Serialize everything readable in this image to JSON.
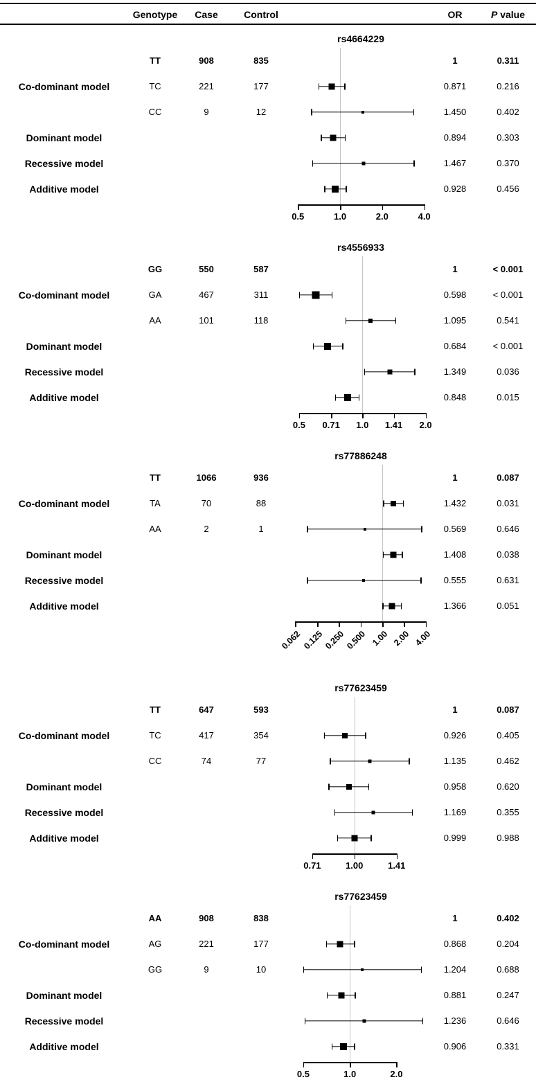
{
  "header": {
    "genotype": "Genotype",
    "case": "Case",
    "control": "Control",
    "or": "OR",
    "p_italic": "P",
    "p_rest": " value"
  },
  "chart_data": [
    {
      "type": "forest",
      "snp": "rs4664229",
      "x_scale": "log",
      "ref_line": 1.0,
      "draw_range": [
        0.45,
        4.4
      ],
      "ticks": [
        0.5,
        1.0,
        2.0,
        4.0
      ],
      "tick_labels": [
        "0.5",
        "1.0",
        "2.0",
        "4.0"
      ],
      "rotated_tick_labels": false,
      "rows": [
        {
          "model": "",
          "genotype": "TT",
          "case": "908",
          "control": "835",
          "or_text": "1",
          "p_text": "0.311",
          "bold": true
        },
        {
          "model": "Co-dominant model",
          "genotype": "TC",
          "case": "221",
          "control": "177",
          "or": 0.871,
          "ci": [
            0.7,
            1.09
          ],
          "marker_size": 9,
          "or_text": "0.871",
          "p_text": "0.216"
        },
        {
          "model": "",
          "genotype": "CC",
          "case": "9",
          "control": "12",
          "or": 1.45,
          "ci": [
            0.62,
            3.4
          ],
          "marker_size": 4,
          "or_text": "1.450",
          "p_text": "0.402"
        },
        {
          "model": "Dominant model",
          "or": 0.894,
          "ci": [
            0.73,
            1.1
          ],
          "marker_size": 9,
          "or_text": "0.894",
          "p_text": "0.303"
        },
        {
          "model": "Recessive model",
          "or": 1.467,
          "ci": [
            0.63,
            3.42
          ],
          "marker_size": 5,
          "or_text": "1.467",
          "p_text": "0.370"
        },
        {
          "model": "Additive model",
          "or": 0.928,
          "ci": [
            0.77,
            1.12
          ],
          "marker_size": 10,
          "or_text": "0.928",
          "p_text": "0.456"
        }
      ]
    },
    {
      "type": "forest",
      "snp": "rs4556933",
      "x_scale": "log",
      "ref_line": 1.0,
      "draw_range": [
        0.46,
        2.1
      ],
      "ticks": [
        0.5,
        0.71,
        1.0,
        1.41,
        2.0
      ],
      "tick_labels": [
        "0.5",
        "0.71",
        "1.0",
        "1.41",
        "2.0"
      ],
      "rotated_tick_labels": false,
      "rows": [
        {
          "model": "",
          "genotype": "GG",
          "case": "550",
          "control": "587",
          "or_text": "1",
          "p_text": "< 0.001",
          "bold": true
        },
        {
          "model": "Co-dominant model",
          "genotype": "GA",
          "case": "467",
          "control": "311",
          "or": 0.598,
          "ci": [
            0.5,
            0.72
          ],
          "marker_size": 11,
          "or_text": "0.598",
          "p_text": "< 0.001"
        },
        {
          "model": "",
          "genotype": "AA",
          "case": "101",
          "control": "118",
          "or": 1.095,
          "ci": [
            0.83,
            1.45
          ],
          "marker_size": 6,
          "or_text": "1.095",
          "p_text": "0.541"
        },
        {
          "model": "Dominant model",
          "or": 0.684,
          "ci": [
            0.58,
            0.81
          ],
          "marker_size": 10,
          "or_text": "0.684",
          "p_text": "< 0.001"
        },
        {
          "model": "Recessive model",
          "or": 1.349,
          "ci": [
            1.02,
            1.79
          ],
          "marker_size": 7,
          "or_text": "1.349",
          "p_text": "0.036"
        },
        {
          "model": "Additive model",
          "or": 0.848,
          "ci": [
            0.74,
            0.97
          ],
          "marker_size": 10,
          "or_text": "0.848",
          "p_text": "0.015"
        }
      ]
    },
    {
      "type": "forest",
      "snp": "rs77886248",
      "x_scale": "log",
      "ref_line": 1.0,
      "draw_range": [
        0.055,
        4.6
      ],
      "ticks": [
        0.062,
        0.125,
        0.25,
        0.5,
        1.0,
        2.0,
        4.0
      ],
      "tick_labels": [
        "0.062",
        "0.125",
        "0.250",
        "0.500",
        "1.00",
        "2.00",
        "4.00"
      ],
      "rotated_tick_labels": true,
      "rows": [
        {
          "model": "",
          "genotype": "TT",
          "case": "1066",
          "control": "936",
          "or_text": "1",
          "p_text": "0.087",
          "bold": true
        },
        {
          "model": "Co-dominant model",
          "genotype": "TA",
          "case": "70",
          "control": "88",
          "or": 1.432,
          "ci": [
            1.03,
            1.99
          ],
          "marker_size": 8,
          "or_text": "1.432",
          "p_text": "0.031"
        },
        {
          "model": "",
          "genotype": "AA",
          "case": "2",
          "control": "1",
          "or": 0.569,
          "ci": [
            0.09,
            3.6
          ],
          "marker_size": 4,
          "or_text": "0.569",
          "p_text": "0.646"
        },
        {
          "model": "Dominant model",
          "or": 1.408,
          "ci": [
            1.02,
            1.94
          ],
          "marker_size": 9,
          "or_text": "1.408",
          "p_text": "0.038"
        },
        {
          "model": "Recessive model",
          "or": 0.555,
          "ci": [
            0.09,
            3.5
          ],
          "marker_size": 4,
          "or_text": "0.555",
          "p_text": "0.631"
        },
        {
          "model": "Additive model",
          "or": 1.366,
          "ci": [
            1.0,
            1.86
          ],
          "marker_size": 9,
          "or_text": "1.366",
          "p_text": "0.051"
        }
      ]
    },
    {
      "type": "forest",
      "snp": "rs77623459",
      "x_scale": "log",
      "ref_line": 1.0,
      "draw_range": [
        0.6,
        1.85
      ],
      "ticks": [
        0.71,
        1.0,
        1.41
      ],
      "tick_labels": [
        "0.71",
        "1.00",
        "1.41"
      ],
      "rotated_tick_labels": false,
      "rows": [
        {
          "model": "",
          "genotype": "TT",
          "case": "647",
          "control": "593",
          "or_text": "1",
          "p_text": "0.087",
          "bold": true
        },
        {
          "model": "Co-dominant model",
          "genotype": "TC",
          "case": "417",
          "control": "354",
          "or": 0.926,
          "ci": [
            0.78,
            1.1
          ],
          "marker_size": 8,
          "or_text": "0.926",
          "p_text": "0.405"
        },
        {
          "model": "",
          "genotype": "CC",
          "case": "74",
          "control": "77",
          "or": 1.135,
          "ci": [
            0.82,
            1.57
          ],
          "marker_size": 5,
          "or_text": "1.135",
          "p_text": "0.462"
        },
        {
          "model": "Dominant model",
          "or": 0.958,
          "ci": [
            0.81,
            1.13
          ],
          "marker_size": 8,
          "or_text": "0.958",
          "p_text": "0.620"
        },
        {
          "model": "Recessive model",
          "or": 1.169,
          "ci": [
            0.85,
            1.61
          ],
          "marker_size": 5,
          "or_text": "1.169",
          "p_text": "0.355"
        },
        {
          "model": "Additive model",
          "or": 0.999,
          "ci": [
            0.87,
            1.15
          ],
          "marker_size": 9,
          "or_text": "0.999",
          "p_text": "0.988"
        }
      ]
    },
    {
      "type": "forest",
      "snp": "rs77623459",
      "x_scale": "log",
      "ref_line": 1.0,
      "draw_range": [
        0.42,
        3.3
      ],
      "ticks": [
        0.5,
        1.0,
        2.0
      ],
      "tick_labels": [
        "0.5",
        "1.0",
        "2.0"
      ],
      "rotated_tick_labels": false,
      "rows": [
        {
          "model": "",
          "genotype": "AA",
          "case": "908",
          "control": "838",
          "or_text": "1",
          "p_text": "0.402",
          "bold": true
        },
        {
          "model": "Co-dominant model",
          "genotype": "AG",
          "case": "221",
          "control": "177",
          "or": 0.868,
          "ci": [
            0.7,
            1.08
          ],
          "marker_size": 9,
          "or_text": "0.868",
          "p_text": "0.204"
        },
        {
          "model": "",
          "genotype": "GG",
          "case": "9",
          "control": "10",
          "or": 1.204,
          "ci": [
            0.5,
            2.92
          ],
          "marker_size": 4,
          "or_text": "1.204",
          "p_text": "0.688"
        },
        {
          "model": "Dominant model",
          "or": 0.881,
          "ci": [
            0.71,
            1.09
          ],
          "marker_size": 9,
          "or_text": "0.881",
          "p_text": "0.247"
        },
        {
          "model": "Recessive model",
          "or": 1.236,
          "ci": [
            0.51,
            2.98
          ],
          "marker_size": 5,
          "or_text": "1.236",
          "p_text": "0.646"
        },
        {
          "model": "Additive model",
          "or": 0.906,
          "ci": [
            0.76,
            1.08
          ],
          "marker_size": 10,
          "or_text": "0.906",
          "p_text": "0.331"
        }
      ]
    }
  ]
}
